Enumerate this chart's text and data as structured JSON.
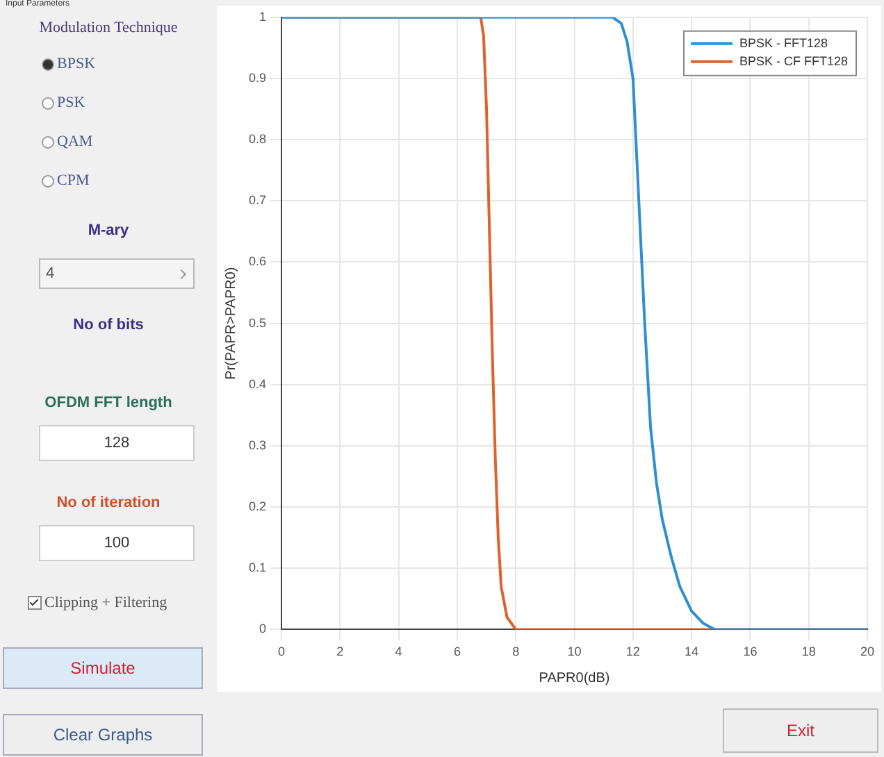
{
  "chart_data": [
    {
      "type": "other",
      "title": "Input Parameters",
      "annotations": [
        "Modulation Technique",
        "BPSK",
        "PSK",
        "QAM",
        "CPM",
        "M-ary",
        "4",
        "No of bits",
        "OFDM FFT length",
        "128",
        "No of iteration",
        "100",
        "Clipping + Filtering",
        "Simulate",
        "Clear Graphs",
        "Exit"
      ]
    },
    {
      "type": "line",
      "xlabel": "PAPR0(dB)",
      "ylabel": "Pr(PAPR>PAPR0)",
      "xlim": [
        0,
        20
      ],
      "xticks": [
        0,
        2,
        4,
        6,
        8,
        10,
        12,
        14,
        16,
        18,
        20
      ],
      "ylim": [
        0,
        1
      ],
      "yticks": [
        0,
        0.1,
        0.2,
        0.3,
        0.4,
        0.5,
        0.6,
        0.7,
        0.8,
        0.9,
        1
      ],
      "grid": true,
      "legend": "top right",
      "marker": "none",
      "line_style": "solid",
      "series": [
        {
          "name": "BPSK - FFT128",
          "color": "#2f8fd0",
          "x": [
            0,
            11.3,
            11.6,
            11.8,
            12.0,
            12.2,
            12.4,
            12.6,
            12.8,
            13.0,
            13.3,
            13.6,
            14.0,
            14.4,
            14.8,
            20
          ],
          "values": [
            1,
            1,
            0.99,
            0.96,
            0.9,
            0.7,
            0.5,
            0.33,
            0.24,
            0.18,
            0.12,
            0.07,
            0.03,
            0.01,
            0,
            0
          ]
        },
        {
          "name": "BPSK - CF FFT128",
          "color": "#e0622a",
          "x": [
            0,
            6.8,
            6.9,
            7.0,
            7.1,
            7.2,
            7.3,
            7.4,
            7.5,
            7.7,
            8.0,
            20
          ],
          "values": [
            1,
            1,
            0.97,
            0.85,
            0.65,
            0.45,
            0.28,
            0.15,
            0.07,
            0.02,
            0,
            0
          ]
        }
      ]
    }
  ]
}
